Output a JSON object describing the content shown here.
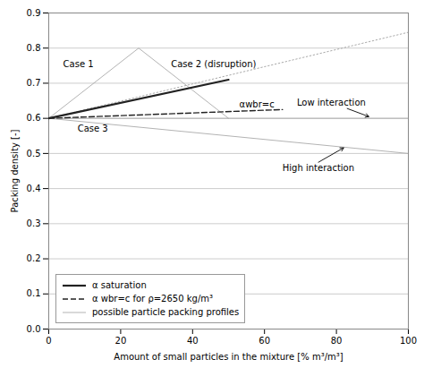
{
  "chart_data": {
    "type": "line",
    "xlabel": "Amount of small particles in the mixture [% m³/m³]",
    "ylabel": "Packing density [-]",
    "xlim": [
      0,
      100
    ],
    "ylim": [
      0,
      0.9
    ],
    "xticks": [
      0,
      20,
      40,
      60,
      80,
      100
    ],
    "yticks": [
      {
        "value": 0,
        "label": "0.0"
      },
      0.1,
      0.2,
      0.3,
      0.4,
      0.5,
      0.6,
      0.7,
      0.8,
      0.9
    ],
    "grid": "y",
    "legend": "lower left",
    "series": [
      {
        "name": "α saturation",
        "color": "#222222",
        "line_style": "solid",
        "x": [
          0,
          50
        ],
        "values": [
          0.6,
          0.71
        ]
      },
      {
        "name": "α wbr=c for ρ=2650 kg/m³",
        "color": "#222222",
        "line_style": "dashed",
        "x": [
          0,
          65
        ],
        "values": [
          0.6,
          0.625
        ]
      },
      {
        "name": "possible particle packing profiles",
        "color": "#aaaaaa",
        "line_style": "solid",
        "x": [
          0,
          25,
          50,
          null,
          0,
          100,
          null,
          0,
          100,
          null,
          100,
          100
        ],
        "values": [
          0.6,
          0.8,
          0.6,
          null,
          0.6,
          0.5,
          null,
          0.6,
          0.6,
          null,
          0.6,
          0.5
        ]
      },
      {
        "color": "#aaaaaa",
        "line_style": "dotted",
        "x": [
          0,
          100
        ],
        "values": [
          0.6,
          0.845
        ]
      }
    ],
    "annotations": [
      {
        "text": "Case 1",
        "x": 4,
        "y": 0.745
      },
      {
        "text": "Case 2 (disruption)",
        "x": 34,
        "y": 0.746
      },
      {
        "text": "Case 3",
        "x": 8,
        "y": 0.563
      },
      {
        "text": "αwbr=c",
        "x": 53,
        "y": 0.632
      },
      {
        "text": "Low interaction",
        "x": 69,
        "y": 0.635,
        "arrow_from": [
          83,
          0.628
        ],
        "arrow_to": [
          89,
          0.605
        ]
      },
      {
        "text": "High interaction",
        "x": 65,
        "y": 0.468,
        "arrow_from": [
          75,
          0.475
        ],
        "arrow_to": [
          82,
          0.516
        ]
      }
    ]
  }
}
